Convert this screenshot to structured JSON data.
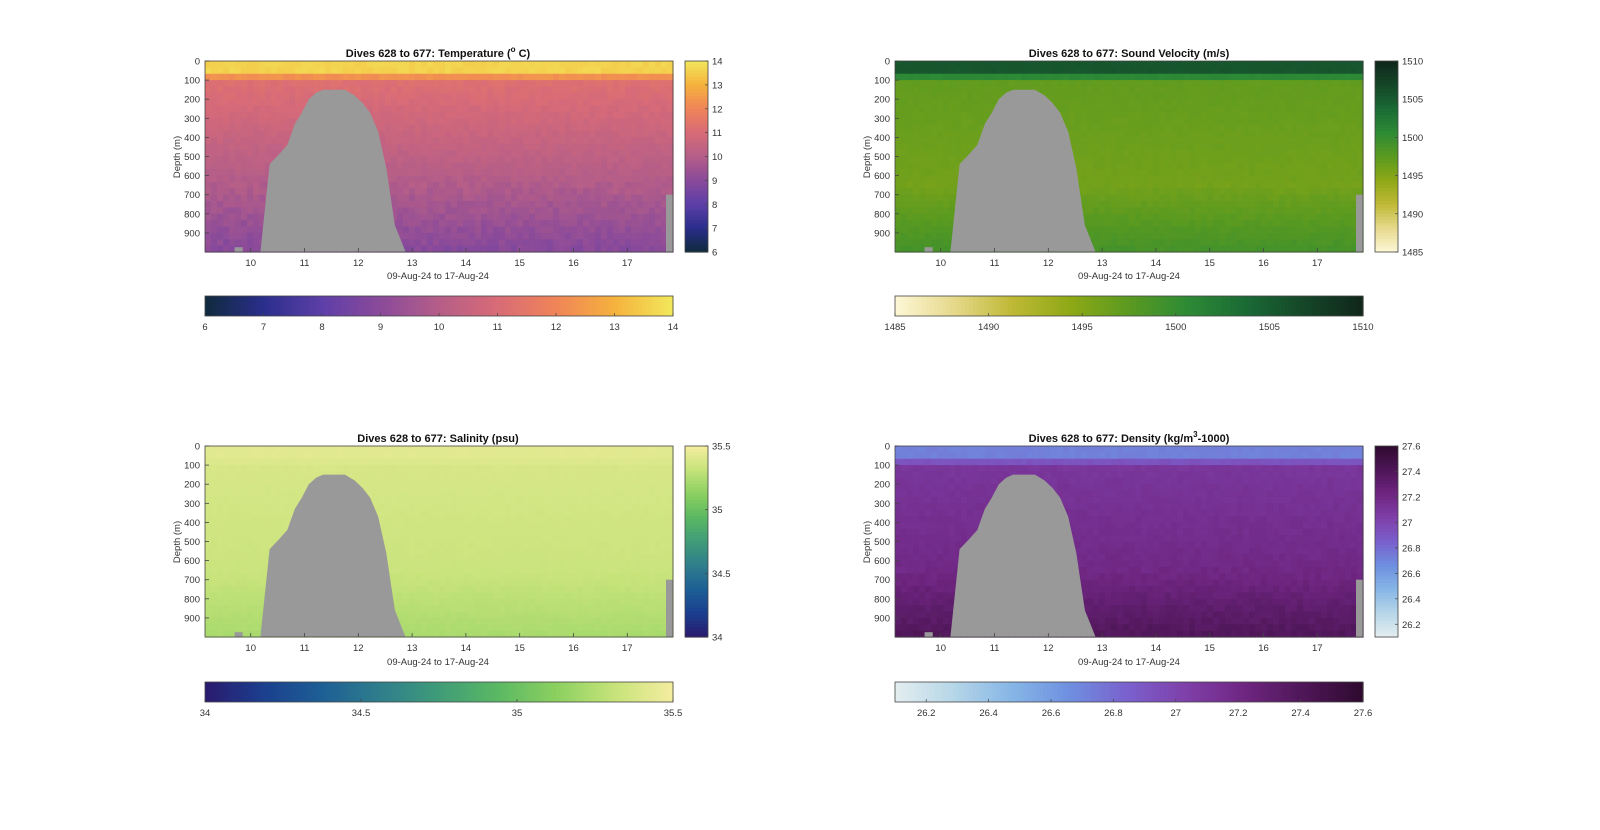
{
  "figure": {
    "background": "#ffffff"
  },
  "chart_data": [
    {
      "type": "heatmap",
      "title": "Dives 628 to 677: Temperature (° C)",
      "title_parts": [
        "Dives 628 to 677: Temperature (",
        "o",
        " C)"
      ],
      "title_sup_style": "superscript-before",
      "xlabel": "09-Aug-24 to 17-Aug-24",
      "ylabel": "Depth (m)",
      "x_ticks": [
        "10",
        "11",
        "12",
        "13",
        "14",
        "15",
        "16",
        "17"
      ],
      "y_ticks": [
        "0",
        "100",
        "200",
        "300",
        "400",
        "500",
        "600",
        "700",
        "800",
        "900"
      ],
      "xlim": [
        9.15,
        17.85
      ],
      "ylim": [
        0,
        1000
      ],
      "y_reversed": true,
      "colorbar_ticks": [
        "6",
        "7",
        "8",
        "9",
        "10",
        "11",
        "12",
        "13",
        "14"
      ],
      "colorbar_ticks_horizontal": [
        "6",
        "7",
        "8",
        "9",
        "10",
        "11",
        "12",
        "13",
        "14"
      ],
      "clim": [
        6,
        14
      ],
      "colormap": [
        "#0f2a3c",
        "#2a2e8c",
        "#5d3fa8",
        "#8a4a9a",
        "#b55e88",
        "#d86b77",
        "#f08458",
        "#f5b23d",
        "#f2e85c"
      ],
      "profile": {
        "surface": 13.6,
        "mixed_depth": 50,
        "thermocline": 11.2,
        "mid": 9.9,
        "deep": 8.9
      },
      "seafloor_color": "#999999"
    },
    {
      "type": "heatmap",
      "title": "Dives 628 to 677: Sound Velocity (m/s)",
      "title_parts": [
        "Dives 628 to 677: Sound Velocity (m/s)"
      ],
      "xlabel": "09-Aug-24 to 17-Aug-24",
      "ylabel": "Depth (m)",
      "x_ticks": [
        "10",
        "11",
        "12",
        "13",
        "14",
        "15",
        "16",
        "17"
      ],
      "y_ticks": [
        "0",
        "100",
        "200",
        "300",
        "400",
        "500",
        "600",
        "700",
        "800",
        "900"
      ],
      "xlim": [
        9.15,
        17.85
      ],
      "ylim": [
        0,
        1000
      ],
      "y_reversed": true,
      "colorbar_ticks": [
        "1485",
        "1490",
        "1495",
        "1500",
        "1505",
        "1510"
      ],
      "colorbar_ticks_horizontal": [
        "1485",
        "1490",
        "1495",
        "1500",
        "1505",
        "1510"
      ],
      "clim": [
        1485,
        1510
      ],
      "colormap": [
        "#fdf7d6",
        "#e6d98c",
        "#bfb935",
        "#8ea816",
        "#5a9a20",
        "#2d8a35",
        "#1a6a35",
        "#154628",
        "#10261a"
      ],
      "profile": {
        "surface": 1505.5,
        "mixed_depth": 50,
        "thermocline": 1497.0,
        "mid": 1496.0,
        "deep": 1499.0
      },
      "seafloor_color": "#999999"
    },
    {
      "type": "heatmap",
      "title": "Dives 628 to 677: Salinity (psu)",
      "title_parts": [
        "Dives 628 to 677: Salinity (psu)"
      ],
      "xlabel": "09-Aug-24 to 17-Aug-24",
      "ylabel": "Depth (m)",
      "x_ticks": [
        "10",
        "11",
        "12",
        "13",
        "14",
        "15",
        "16",
        "17"
      ],
      "y_ticks": [
        "0",
        "100",
        "200",
        "300",
        "400",
        "500",
        "600",
        "700",
        "800",
        "900"
      ],
      "xlim": [
        9.15,
        17.85
      ],
      "ylim": [
        0,
        1000
      ],
      "y_reversed": true,
      "colorbar_ticks": [
        "34",
        "34.5",
        "35",
        "35.5"
      ],
      "colorbar_ticks_horizontal": [
        "34",
        "34.5",
        "35",
        "35.5"
      ],
      "clim": [
        34,
        35.5
      ],
      "colormap": [
        "#2a1a6e",
        "#1b3f8e",
        "#1d5f95",
        "#2f7e8c",
        "#3f9c78",
        "#5ab863",
        "#8bd060",
        "#c6e37a",
        "#f5eda0"
      ],
      "profile": {
        "surface": 35.42,
        "mixed_depth": 60,
        "thermocline": 35.38,
        "mid": 35.33,
        "deep": 35.22
      },
      "seafloor_color": "#999999"
    },
    {
      "type": "heatmap",
      "title": "Dives 628 to 677: Density (kg/m3-1000)",
      "title_parts": [
        "Dives 628 to 677: Density (kg/m",
        "3",
        "-1000)"
      ],
      "title_sup_style": "superscript-middle",
      "xlabel": "09-Aug-24 to 17-Aug-24",
      "ylabel": "Depth (m)",
      "x_ticks": [
        "10",
        "11",
        "12",
        "13",
        "14",
        "15",
        "16",
        "17"
      ],
      "y_ticks": [
        "0",
        "100",
        "200",
        "300",
        "400",
        "500",
        "600",
        "700",
        "800",
        "900"
      ],
      "xlim": [
        9.15,
        17.85
      ],
      "ylim": [
        0,
        1000
      ],
      "y_reversed": true,
      "colorbar_ticks": [
        "26.2",
        "26.4",
        "26.6",
        "26.8",
        "27",
        "27.2",
        "27.4",
        "27.6"
      ],
      "colorbar_ticks_horizontal": [
        "26.2",
        "26.4",
        "26.6",
        "26.8",
        "27",
        "27.2",
        "27.4",
        "27.6"
      ],
      "clim": [
        26.1,
        27.6
      ],
      "colormap": [
        "#e4eef0",
        "#b6d6e8",
        "#86b6e6",
        "#6e8fe0",
        "#7a5fcc",
        "#7f3fa8",
        "#6e2580",
        "#4e1657",
        "#2e0a2e"
      ],
      "profile": {
        "surface": 26.72,
        "mixed_depth": 55,
        "thermocline": 27.1,
        "mid": 27.2,
        "deep": 27.4
      },
      "seafloor_color": "#999999"
    }
  ]
}
